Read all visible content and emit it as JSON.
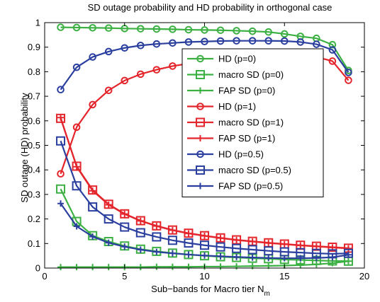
{
  "chart_data": {
    "type": "line",
    "title": "SD outage probability and HD probability in orthogonal case",
    "xlabel_main": "Sub−bands for Macro tier N",
    "xlabel_sub": "m",
    "ylabel": "SD outage  (HD)  probability",
    "xlim": [
      0,
      20
    ],
    "ylim": [
      0,
      1
    ],
    "xticks": [
      "0",
      "5",
      "10",
      "15",
      "20"
    ],
    "yticks": [
      "0",
      "0.1",
      "0.2",
      "0.3",
      "0.4",
      "0.5",
      "0.6",
      "0.7",
      "0.8",
      "0.9",
      "1"
    ],
    "grid": false,
    "legend_position": "center-right",
    "x": [
      1,
      2,
      3,
      4,
      5,
      6,
      7,
      8,
      9,
      10,
      11,
      12,
      13,
      14,
      15,
      16,
      17,
      18,
      19
    ],
    "series": [
      {
        "name": "HD (p=0)",
        "color": "#3cb043",
        "marker": "circle",
        "values": [
          0.981,
          0.98,
          0.979,
          0.978,
          0.976,
          0.975,
          0.974,
          0.973,
          0.971,
          0.97,
          0.969,
          0.967,
          0.965,
          0.962,
          0.954,
          0.944,
          0.936,
          0.91,
          0.805
        ]
      },
      {
        "name": "macro SD (p=0)",
        "color": "#3cb043",
        "marker": "square",
        "values": [
          0.322,
          0.19,
          0.132,
          0.108,
          0.09,
          0.077,
          0.068,
          0.061,
          0.055,
          0.05,
          0.046,
          0.043,
          0.04,
          0.038,
          0.035,
          0.033,
          0.031,
          0.029,
          0.028
        ]
      },
      {
        "name": "FAP SD (p=0)",
        "color": "#3cb043",
        "marker": "plus",
        "values": [
          0.004,
          0.004,
          0.004,
          0.004,
          0.004,
          0.004,
          0.005,
          0.005,
          0.005,
          0.006,
          0.006,
          0.007,
          0.008,
          0.009,
          0.01,
          0.012,
          0.015,
          0.02,
          0.028
        ]
      },
      {
        "name": "HD (p=1)",
        "color": "#e4252b",
        "marker": "circle",
        "values": [
          0.384,
          0.574,
          0.666,
          0.724,
          0.764,
          0.79,
          0.808,
          0.823,
          0.833,
          0.843,
          0.851,
          0.857,
          0.861,
          0.865,
          0.866,
          0.865,
          0.86,
          0.843,
          0.765
        ]
      },
      {
        "name": "macro SD (p=1)",
        "color": "#e4252b",
        "marker": "square",
        "values": [
          0.61,
          0.415,
          0.318,
          0.26,
          0.221,
          0.193,
          0.172,
          0.155,
          0.142,
          0.132,
          0.123,
          0.115,
          0.109,
          0.103,
          0.098,
          0.093,
          0.089,
          0.085,
          0.081
        ]
      },
      {
        "name": "FAP SD (p=1)",
        "color": "#e4252b",
        "marker": "plus",
        "values": [
          0.613,
          0.413,
          0.315,
          0.258,
          0.22,
          0.192,
          0.171,
          0.154,
          0.141,
          0.131,
          0.122,
          0.114,
          0.108,
          0.102,
          0.097,
          0.092,
          0.088,
          0.084,
          0.08
        ]
      },
      {
        "name": "HD (p=0.5)",
        "color": "#2b3f9f",
        "marker": "circle",
        "values": [
          0.727,
          0.818,
          0.86,
          0.882,
          0.897,
          0.907,
          0.913,
          0.917,
          0.921,
          0.923,
          0.925,
          0.926,
          0.926,
          0.926,
          0.925,
          0.921,
          0.912,
          0.889,
          0.797
        ]
      },
      {
        "name": "macro SD (p=0.5)",
        "color": "#2b3f9f",
        "marker": "square",
        "values": [
          0.518,
          0.335,
          0.249,
          0.2,
          0.167,
          0.144,
          0.127,
          0.113,
          0.102,
          0.093,
          0.086,
          0.08,
          0.075,
          0.07,
          0.066,
          0.063,
          0.06,
          0.058,
          0.06
        ]
      },
      {
        "name": "FAP SD (p=0.5)",
        "color": "#2b3f9f",
        "marker": "plus",
        "values": [
          0.263,
          0.17,
          0.128,
          0.103,
          0.087,
          0.075,
          0.066,
          0.06,
          0.055,
          0.051,
          0.048,
          0.045,
          0.043,
          0.041,
          0.04,
          0.04,
          0.041,
          0.044,
          0.054
        ]
      }
    ]
  }
}
